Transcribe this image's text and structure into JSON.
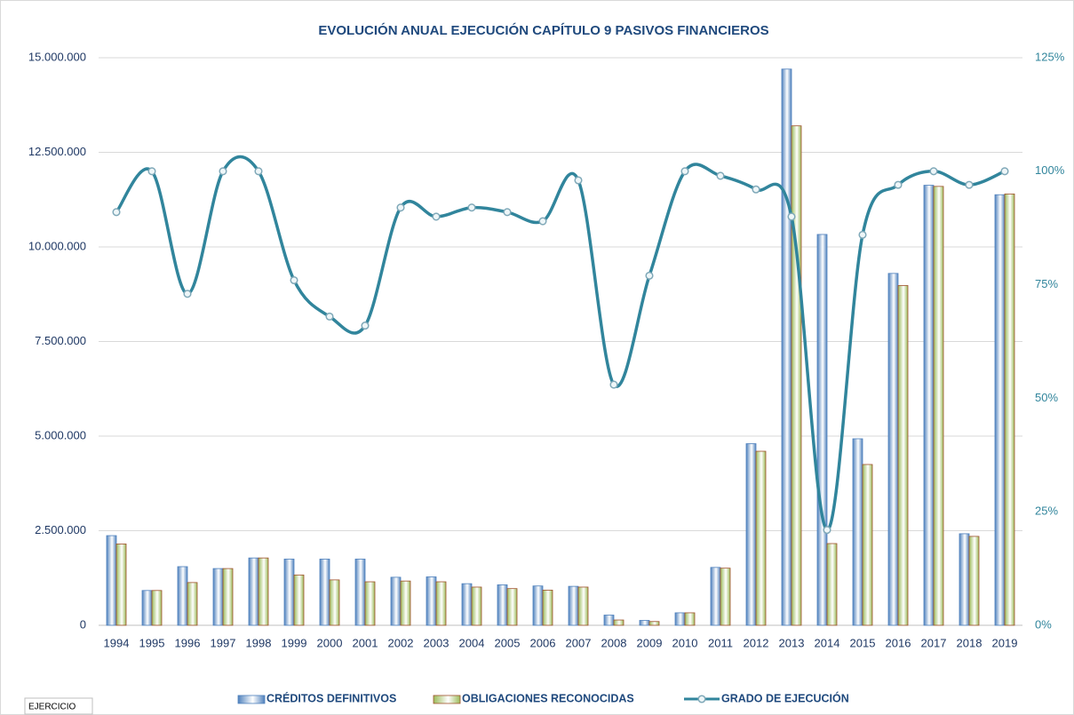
{
  "chart_data": {
    "type": "bar-line",
    "title": "EVOLUCIÓN ANUAL EJECUCIÓN CAPÍTULO 9 PASIVOS FINANCIEROS",
    "x_label": "EJERCICIO",
    "categories": [
      "1994",
      "1995",
      "1996",
      "1997",
      "1998",
      "1999",
      "2000",
      "2001",
      "2002",
      "2003",
      "2004",
      "2005",
      "2006",
      "2007",
      "2008",
      "2009",
      "2010",
      "2011",
      "2012",
      "2013",
      "2014",
      "2015",
      "2016",
      "2017",
      "2018",
      "2019"
    ],
    "series": [
      {
        "name": "CRÉDITOS DEFINITIVOS",
        "type": "bar",
        "color": "#4f81bd",
        "values": [
          2370000,
          920000,
          1550000,
          1500000,
          1780000,
          1750000,
          1750000,
          1750000,
          1270000,
          1280000,
          1100000,
          1070000,
          1040000,
          1030000,
          270000,
          130000,
          330000,
          1530000,
          4800000,
          14700000,
          10330000,
          4930000,
          9300000,
          11630000,
          2420000,
          11380000
        ]
      },
      {
        "name": "OBLIGACIONES RECONOCIDAS",
        "type": "bar",
        "color": "#9bbb59",
        "edge": "#a0522d",
        "values": [
          2150000,
          920000,
          1130000,
          1500000,
          1780000,
          1330000,
          1200000,
          1150000,
          1170000,
          1150000,
          1010000,
          970000,
          930000,
          1010000,
          140000,
          100000,
          330000,
          1510000,
          4600000,
          13200000,
          2160000,
          4250000,
          8980000,
          11600000,
          2350000,
          11400000
        ]
      },
      {
        "name": "GRADO DE EJECUCIÓN",
        "type": "line",
        "axis": "y2",
        "color": "#31859c",
        "values": [
          91,
          100,
          73,
          100,
          100,
          76,
          68,
          66,
          92,
          90,
          92,
          91,
          89,
          98,
          53,
          77,
          100,
          99,
          96,
          90,
          21,
          86,
          97,
          100,
          97,
          100
        ]
      }
    ],
    "ylim": [
      0,
      15000000
    ],
    "yticks": [
      0,
      {
        "value": 2500000,
        "label": "2.500.000"
      },
      {
        "value": 5000000,
        "label": "5.000.000"
      },
      {
        "value": 7500000,
        "label": "7.500.000"
      },
      {
        "value": 10000000,
        "label": "10.000.000"
      },
      {
        "value": 12500000,
        "label": "12.500.000"
      },
      {
        "value": 15000000,
        "label": "15.000.000"
      }
    ],
    "y2lim": [
      0,
      125
    ],
    "y2ticks": [
      {
        "value": 0,
        "label": "0%"
      },
      {
        "value": 25,
        "label": "25%"
      },
      {
        "value": 50,
        "label": "50%"
      },
      {
        "value": 75,
        "label": "75%"
      },
      {
        "value": 100,
        "label": "100%"
      },
      {
        "value": 125,
        "label": "125%"
      }
    ],
    "grid": true,
    "legend": "bottom"
  }
}
